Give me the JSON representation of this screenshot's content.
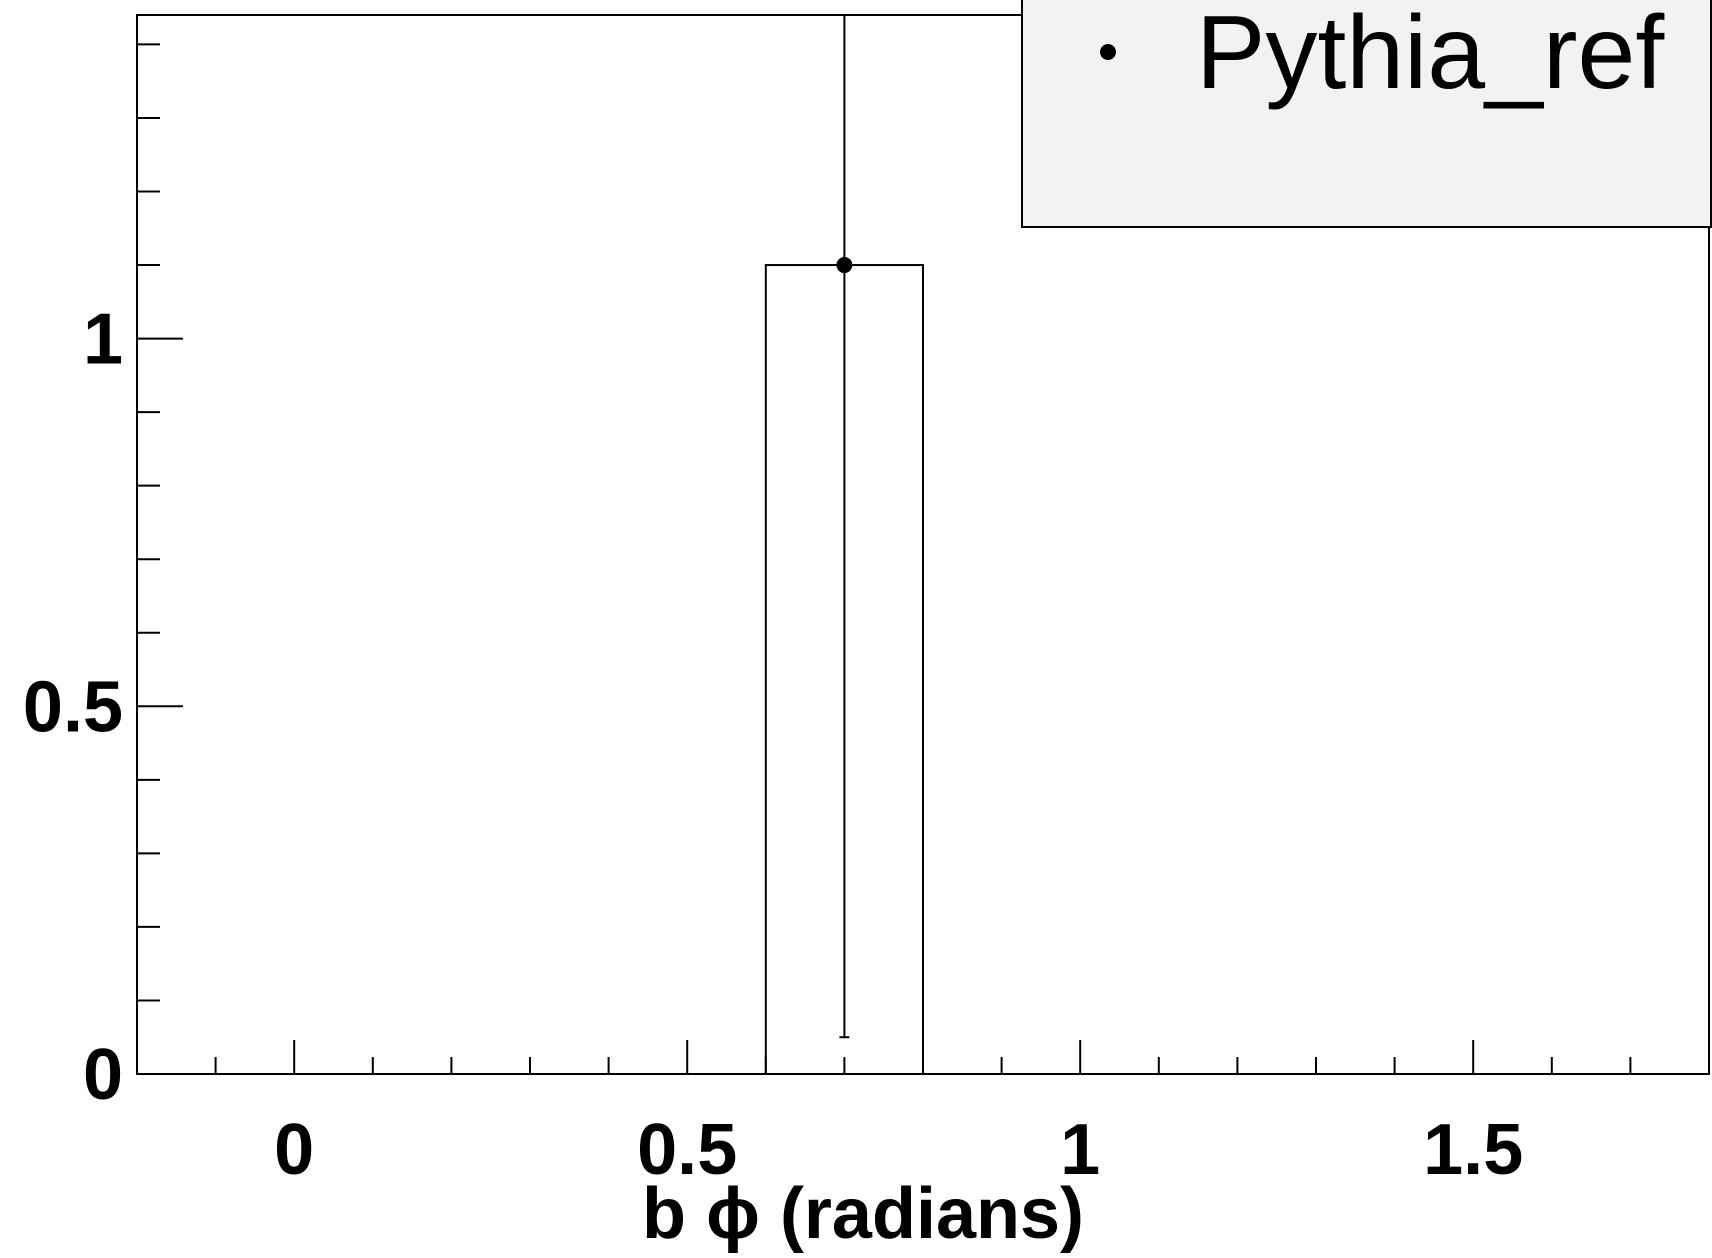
{
  "chart_data": {
    "type": "bar",
    "title": "",
    "xlabel": "b ϕ (radians)",
    "ylabel": "",
    "xlim": [
      -0.2,
      1.8
    ],
    "ylim": [
      0,
      1.44
    ],
    "grid": false,
    "x_ticks": [
      {
        "value": 0,
        "label": "0"
      },
      {
        "value": 0.5,
        "label": "0.5"
      },
      {
        "value": 1,
        "label": "1"
      },
      {
        "value": 1.5,
        "label": "1.5"
      }
    ],
    "y_ticks": [
      {
        "value": 0,
        "label": "0"
      },
      {
        "value": 0.5,
        "label": "0.5"
      },
      {
        "value": 1,
        "label": "1"
      }
    ],
    "series": [
      {
        "name": "Pythia_ref",
        "bins": [
          {
            "x_low": 0.6,
            "x_high": 0.8,
            "value": 1.1,
            "error_low": 0.05,
            "error_high": 1.44
          }
        ]
      }
    ],
    "legend": {
      "position": "top-right",
      "entries": [
        "Pythia_ref"
      ]
    }
  },
  "colors": {
    "background": "#ffffff",
    "axis": "#000000",
    "legend_fill": "#f2f2f2",
    "marker": "#000000"
  }
}
